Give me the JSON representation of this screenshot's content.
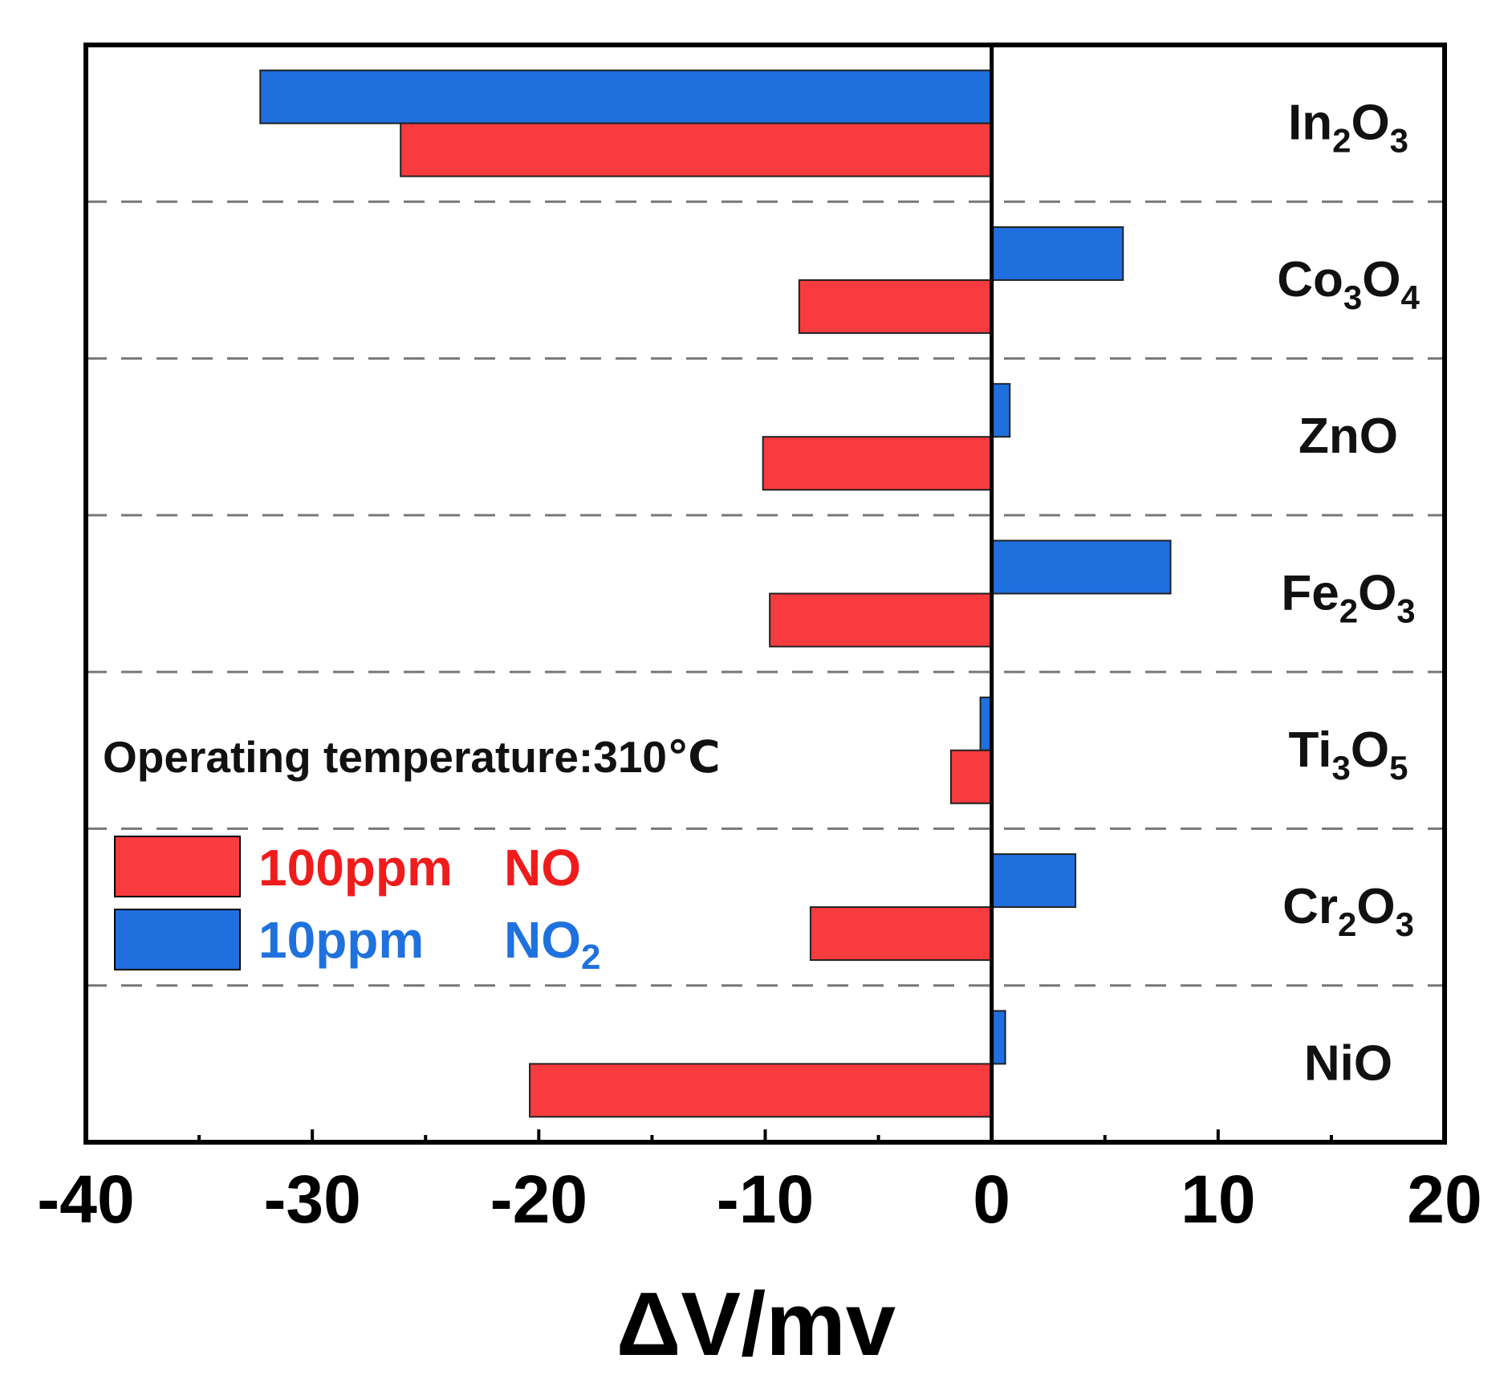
{
  "chart_data": {
    "type": "bar",
    "orientation": "horizontal",
    "title": "",
    "xlabel": "ΔV/mv",
    "ylabel": "",
    "xlim": [
      -40,
      20
    ],
    "xticks": [
      -40,
      -30,
      -20,
      -10,
      0,
      10,
      20
    ],
    "categories": [
      {
        "base": "In",
        "sub1": "2",
        "mid": "O",
        "sub2": "3"
      },
      {
        "base": "Co",
        "sub1": "3",
        "mid": "O",
        "sub2": "4"
      },
      {
        "base": "ZnO",
        "sub1": "",
        "mid": "",
        "sub2": ""
      },
      {
        "base": "Fe",
        "sub1": "2",
        "mid": "O",
        "sub2": "3"
      },
      {
        "base": "Ti",
        "sub1": "3",
        "mid": "O",
        "sub2": "5"
      },
      {
        "base": "Cr",
        "sub1": "2",
        "mid": "O",
        "sub2": "3"
      },
      {
        "base": "NiO",
        "sub1": "",
        "mid": "",
        "sub2": ""
      }
    ],
    "series": [
      {
        "name": "10ppm NO2",
        "legend_conc": "10ppm",
        "legend_gas": "NO",
        "legend_sub": "2",
        "color": "#1f6fde",
        "values": [
          -32.3,
          5.8,
          0.8,
          7.9,
          -0.5,
          3.7,
          0.6
        ]
      },
      {
        "name": "100ppm NO",
        "legend_conc": "100ppm",
        "legend_gas": "NO",
        "legend_sub": "",
        "color": "#f73b3f",
        "values": [
          -26.1,
          -8.5,
          -10.1,
          -9.8,
          -1.8,
          -8.0,
          -20.4
        ]
      }
    ],
    "annotation": "Operating temperature:310℃",
    "grid": "dashed separators between categories",
    "legend_position": "left-middle"
  }
}
